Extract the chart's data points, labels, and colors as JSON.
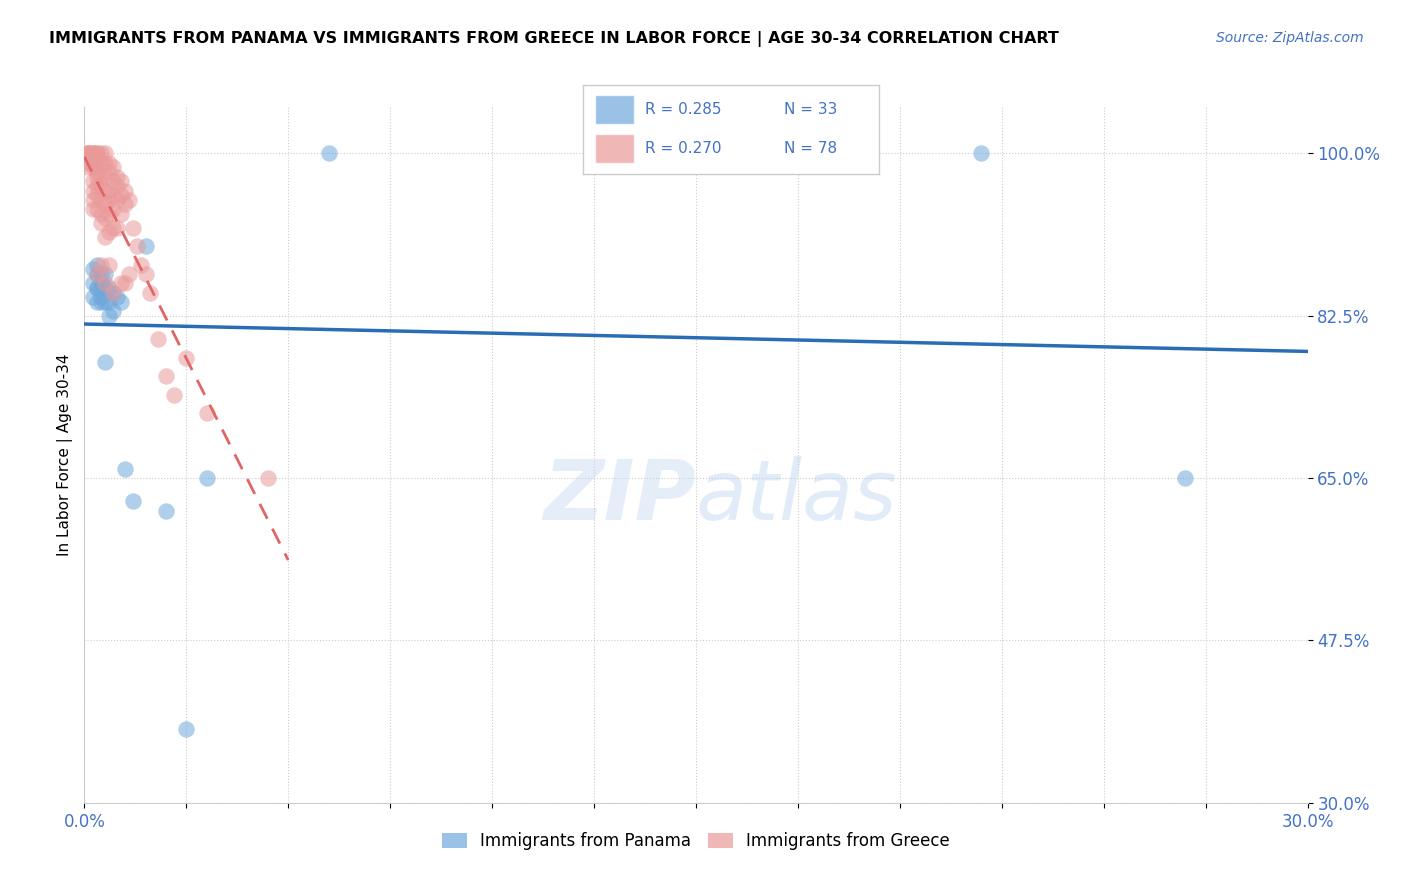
{
  "title": "IMMIGRANTS FROM PANAMA VS IMMIGRANTS FROM GREECE IN LABOR FORCE | AGE 30-34 CORRELATION CHART",
  "source": "Source: ZipAtlas.com",
  "ylabel": "In Labor Force | Age 30-34",
  "xlim": [
    0.0,
    0.3
  ],
  "ylim": [
    0.3,
    1.05
  ],
  "xticks": [
    0.0,
    0.025,
    0.05,
    0.075,
    0.1,
    0.125,
    0.15,
    0.175,
    0.2,
    0.225,
    0.25,
    0.275,
    0.3
  ],
  "xtick_labels_show": [
    "0.0%",
    "30.0%"
  ],
  "yticks": [
    0.3,
    0.475,
    0.65,
    0.825,
    1.0
  ],
  "ytick_labels": [
    "30.0%",
    "47.5%",
    "65.0%",
    "82.5%",
    "100.0%"
  ],
  "panama_color": "#6fa8dc",
  "greece_color": "#ea9999",
  "panama_line_color": "#2a6db5",
  "greece_line_color": "#e06666",
  "legend_R_panama": "R = 0.285",
  "legend_N_panama": "N = 33",
  "legend_R_greece": "R = 0.270",
  "legend_N_greece": "N = 78",
  "legend_text_color": "#4472c4",
  "watermark_zip": "ZIP",
  "watermark_atlas": "atlas",
  "panama_x": [
    0.002,
    0.002,
    0.002,
    0.003,
    0.003,
    0.003,
    0.003,
    0.003,
    0.004,
    0.004,
    0.004,
    0.004,
    0.004,
    0.005,
    0.005,
    0.005,
    0.005,
    0.006,
    0.006,
    0.006,
    0.007,
    0.007,
    0.008,
    0.009,
    0.01,
    0.012,
    0.015,
    0.02,
    0.025,
    0.03,
    0.06,
    0.22,
    0.27
  ],
  "panama_y": [
    0.845,
    0.86,
    0.875,
    0.84,
    0.855,
    0.87,
    0.88,
    0.855,
    0.84,
    0.855,
    0.87,
    0.845,
    0.86,
    0.855,
    0.84,
    0.87,
    0.775,
    0.855,
    0.84,
    0.825,
    0.85,
    0.83,
    0.845,
    0.84,
    0.66,
    0.625,
    0.9,
    0.615,
    0.38,
    0.65,
    1.0,
    1.0,
    0.65
  ],
  "greece_x": [
    0.001,
    0.001,
    0.001,
    0.001,
    0.001,
    0.001,
    0.002,
    0.002,
    0.002,
    0.002,
    0.002,
    0.002,
    0.002,
    0.002,
    0.002,
    0.003,
    0.003,
    0.003,
    0.003,
    0.003,
    0.003,
    0.003,
    0.003,
    0.003,
    0.003,
    0.004,
    0.004,
    0.004,
    0.004,
    0.004,
    0.004,
    0.004,
    0.004,
    0.005,
    0.005,
    0.005,
    0.005,
    0.005,
    0.005,
    0.005,
    0.005,
    0.006,
    0.006,
    0.006,
    0.006,
    0.006,
    0.006,
    0.006,
    0.007,
    0.007,
    0.007,
    0.007,
    0.007,
    0.007,
    0.008,
    0.008,
    0.008,
    0.008,
    0.009,
    0.009,
    0.009,
    0.009,
    0.01,
    0.01,
    0.01,
    0.011,
    0.011,
    0.012,
    0.013,
    0.014,
    0.015,
    0.016,
    0.018,
    0.02,
    0.022,
    0.025,
    0.03,
    0.045
  ],
  "greece_y": [
    1.0,
    1.0,
    1.0,
    1.0,
    0.99,
    0.985,
    1.0,
    1.0,
    1.0,
    0.99,
    0.985,
    0.97,
    0.96,
    0.95,
    0.94,
    1.0,
    1.0,
    0.995,
    0.99,
    0.98,
    0.975,
    0.965,
    0.955,
    0.94,
    0.87,
    1.0,
    0.99,
    0.975,
    0.965,
    0.95,
    0.935,
    0.925,
    0.88,
    1.0,
    0.99,
    0.975,
    0.96,
    0.945,
    0.93,
    0.91,
    0.86,
    0.99,
    0.98,
    0.96,
    0.95,
    0.935,
    0.915,
    0.88,
    0.985,
    0.97,
    0.955,
    0.94,
    0.92,
    0.85,
    0.975,
    0.965,
    0.95,
    0.92,
    0.97,
    0.955,
    0.935,
    0.86,
    0.96,
    0.945,
    0.86,
    0.95,
    0.87,
    0.92,
    0.9,
    0.88,
    0.87,
    0.85,
    0.8,
    0.76,
    0.74,
    0.78,
    0.72,
    0.65
  ]
}
